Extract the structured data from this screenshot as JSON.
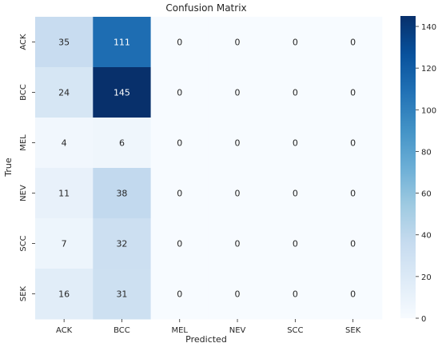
{
  "chart_data": {
    "type": "heatmap",
    "title": "Confusion Matrix",
    "xlabel": "Predicted",
    "ylabel": "True",
    "x_categories": [
      "ACK",
      "BCC",
      "MEL",
      "NEV",
      "SCC",
      "SEK"
    ],
    "y_categories": [
      "ACK",
      "BCC",
      "MEL",
      "NEV",
      "SCC",
      "SEK"
    ],
    "values": [
      [
        35,
        111,
        0,
        0,
        0,
        0
      ],
      [
        24,
        145,
        0,
        0,
        0,
        0
      ],
      [
        4,
        6,
        0,
        0,
        0,
        0
      ],
      [
        11,
        38,
        0,
        0,
        0,
        0
      ],
      [
        7,
        32,
        0,
        0,
        0,
        0
      ],
      [
        16,
        31,
        0,
        0,
        0,
        0
      ]
    ],
    "colorbar": {
      "range": [
        0,
        145
      ],
      "ticks": [
        0,
        20,
        40,
        60,
        80,
        100,
        120,
        140
      ],
      "colormap": "Blues",
      "colors": [
        "#f7fbff",
        "#deebf7",
        "#c6dbef",
        "#9ecae1",
        "#6baed6",
        "#4292c6",
        "#2171b5",
        "#08519c",
        "#08306b"
      ]
    },
    "grid": false,
    "annotations": true
  }
}
